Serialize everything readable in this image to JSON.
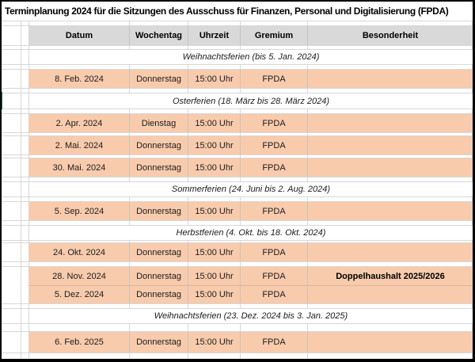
{
  "title": "Terminplanung 2024 für die Sitzungen des Ausschuss für Finanzen, Personal und Digitalisierung (FPDA)",
  "columns": {
    "datum": "Datum",
    "wochentag": "Wochentag",
    "uhrzeit": "Uhrzeit",
    "gremium": "Gremium",
    "besonderheit": "Besonderheit"
  },
  "holidays": {
    "h1": "Weihnachtsferien (bis 5. Jan. 2024)",
    "h2": "Osterferien (18. März bis 28. März 2024)",
    "h3": "Sommerferien (24. Juni bis 2. Aug. 2024)",
    "h4": "Herbstferien (4. Okt. bis 18. Okt. 2024)",
    "h5": "Weihnachtsferien (23. Dez. 2024 bis 3. Jan. 2025)"
  },
  "sessions": {
    "s1": {
      "datum": "8. Feb. 2024",
      "wochentag": "Donnerstag",
      "uhrzeit": "15:00 Uhr",
      "gremium": "FPDA",
      "besonderheit": ""
    },
    "s2": {
      "datum": "2. Apr. 2024",
      "wochentag": "Dienstag",
      "uhrzeit": "15:00 Uhr",
      "gremium": "FPDA",
      "besonderheit": ""
    },
    "s3": {
      "datum": "2. Mai. 2024",
      "wochentag": "Donnerstag",
      "uhrzeit": "15:00 Uhr",
      "gremium": "FPDA",
      "besonderheit": ""
    },
    "s4": {
      "datum": "30. Mai. 2024",
      "wochentag": "Donnerstag",
      "uhrzeit": "15:00 Uhr",
      "gremium": "FPDA",
      "besonderheit": ""
    },
    "s5": {
      "datum": "5. Sep. 2024",
      "wochentag": "Donnerstag",
      "uhrzeit": "15:00 Uhr",
      "gremium": "FPDA",
      "besonderheit": ""
    },
    "s6": {
      "datum": "24. Okt. 2024",
      "wochentag": "Donnerstag",
      "uhrzeit": "15:00 Uhr",
      "gremium": "FPDA",
      "besonderheit": ""
    },
    "s7": {
      "datum": "28. Nov. 2024",
      "wochentag": "Donnerstag",
      "uhrzeit": "15:00 Uhr",
      "gremium": "FPDA",
      "besonderheit": "Doppelhaushalt 2025/2026"
    },
    "s8": {
      "datum": "5. Dez. 2024",
      "wochentag": "Donnerstag",
      "uhrzeit": "15:00 Uhr",
      "gremium": "FPDA",
      "besonderheit": ""
    },
    "s9": {
      "datum": "6. Feb. 2025",
      "wochentag": "Donnerstag",
      "uhrzeit": "15:00 Uhr",
      "gremium": "FPDA",
      "besonderheit": ""
    }
  },
  "colors": {
    "row_highlight": "#F8CBAD",
    "header_bg": "#D9D9D9",
    "selection_green": "#217346",
    "page_border": "#000000",
    "gridline": "#D7D7D7"
  }
}
